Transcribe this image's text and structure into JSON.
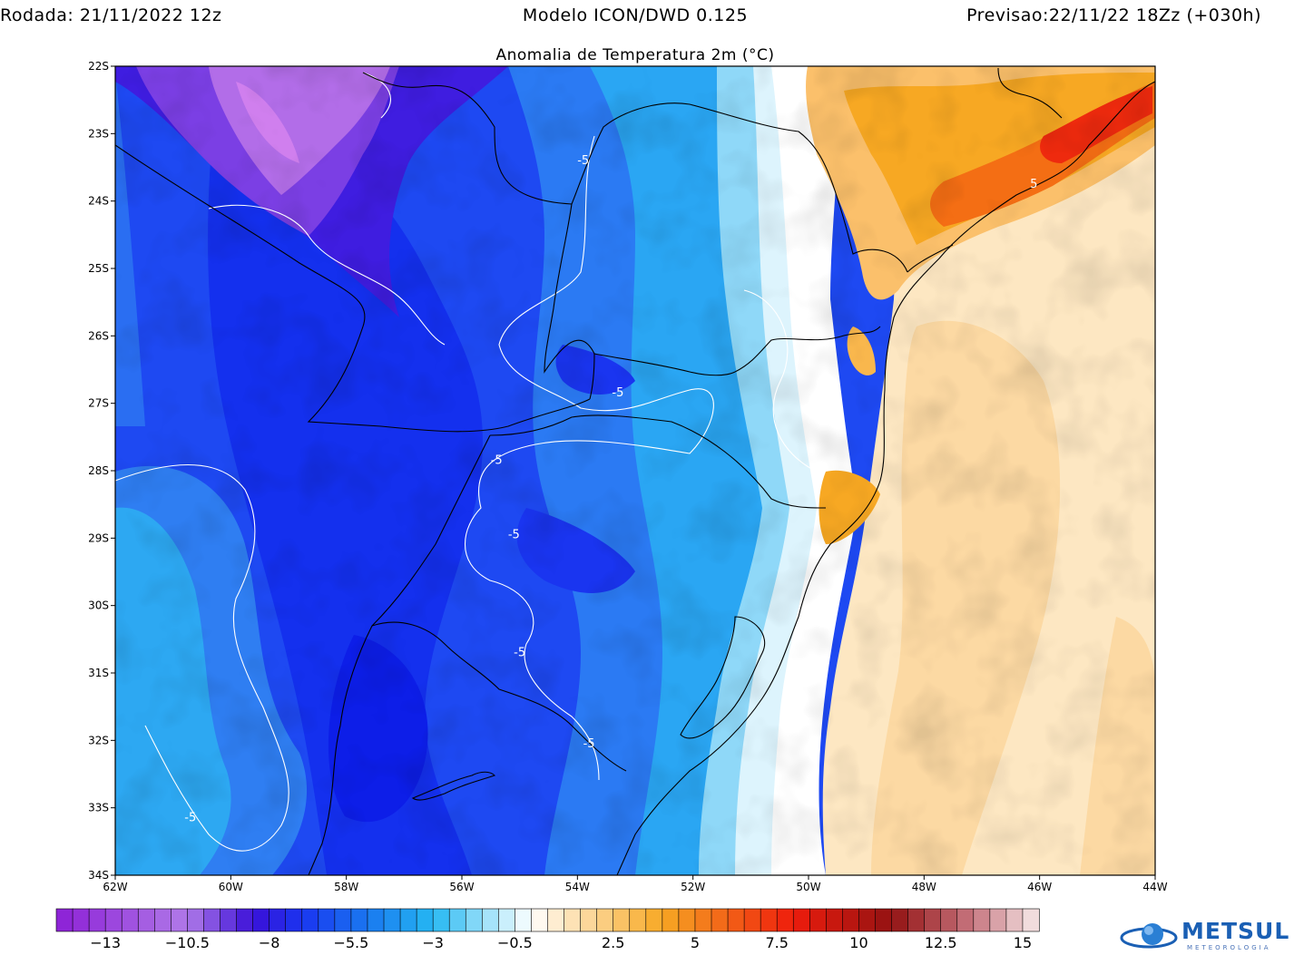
{
  "header": {
    "left": "Rodada: 21/11/2022 12z",
    "center": "Modelo ICON/DWD 0.125",
    "right": "Previsao:22/11/22 18Zz (+030h)"
  },
  "subtitle": "Anomalia de Temperatura 2m (°C)",
  "map": {
    "lat_range": [
      -34,
      -22
    ],
    "lon_range": [
      -62,
      -44
    ],
    "lat_ticks": [
      "22S",
      "23S",
      "24S",
      "25S",
      "26S",
      "27S",
      "28S",
      "29S",
      "30S",
      "31S",
      "32S",
      "33S",
      "34S"
    ],
    "lon_ticks": [
      "62W",
      "60W",
      "58W",
      "56W",
      "54W",
      "52W",
      "50W",
      "48W",
      "46W",
      "44W"
    ],
    "contour_labels": [
      {
        "text": "-5",
        "lon": -53.9,
        "lat": -23.45
      },
      {
        "text": "-5",
        "lon": -53.3,
        "lat": -26.9
      },
      {
        "text": "-5",
        "lon": -55.4,
        "lat": -27.9
      },
      {
        "text": "-5",
        "lon": -55.1,
        "lat": -29.0
      },
      {
        "text": "-5",
        "lon": -55.0,
        "lat": -30.75
      },
      {
        "text": "-5",
        "lon": -53.8,
        "lat": -32.1
      },
      {
        "text": "-5",
        "lon": -60.7,
        "lat": -33.2
      },
      {
        "text": "5",
        "lon": -46.1,
        "lat": -23.8
      }
    ]
  },
  "colorbar": {
    "labels": [
      "−13",
      "−10.5",
      "−8",
      "−5.5",
      "−3",
      "−0.5",
      "2.5",
      "5",
      "7.5",
      "10",
      "12.5",
      "15"
    ],
    "min": -14.5,
    "max": 15.5,
    "step": 0.5,
    "colors": {
      "deep_purple": "#8c1fd6",
      "violet": "#b07ae8",
      "indigo": "#3a10d8",
      "blue": "#1a35f0",
      "mid_blue": "#1a78f0",
      "cyan": "#25b8f2",
      "light_cyan": "#b8e9fb",
      "white": "#ffffff",
      "cream": "#fde7c2",
      "orange": "#f7a823",
      "red": "#ee1c0c",
      "dark_red": "#931212",
      "rose": "#c77680",
      "pale_rose": "#f7eaea"
    }
  },
  "logo": {
    "name": "METSUL",
    "subtitle": "METEOROLOGIA"
  }
}
